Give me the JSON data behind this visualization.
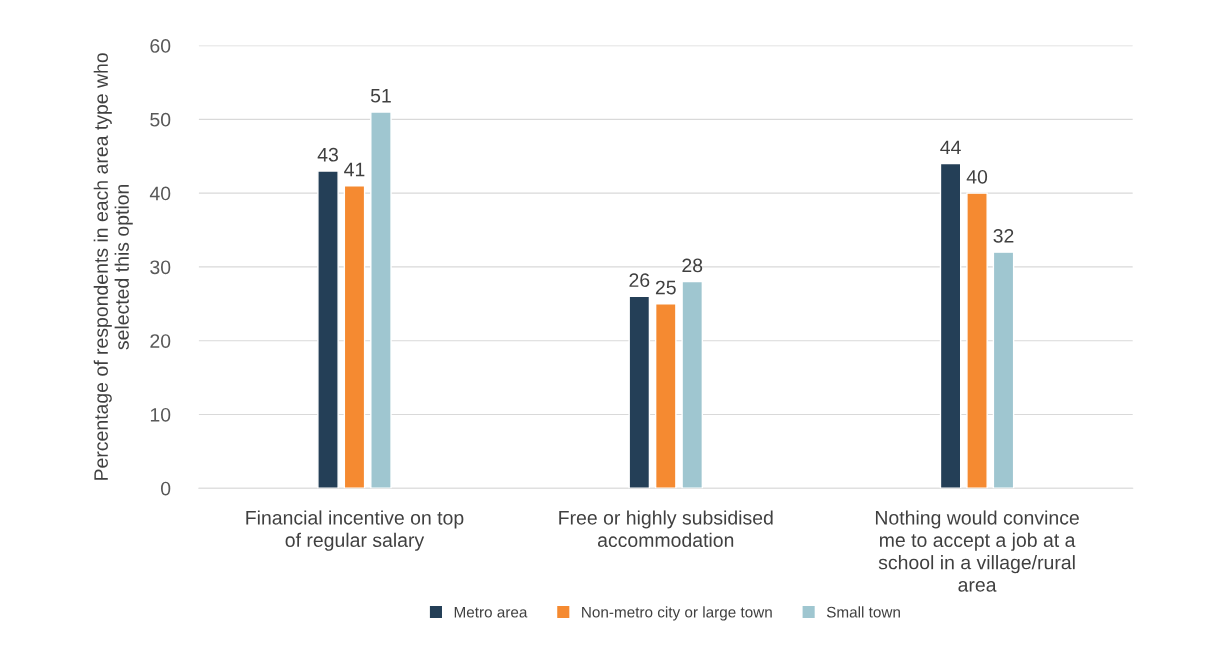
{
  "chart_data": {
    "type": "bar",
    "ylabel": "Percentage of respondents in each area type who selected this option",
    "categories": [
      "Financial incentive on top of regular salary",
      "Free or highly subsidised accommodation",
      "Nothing would convince me to accept a job at a school in a village/rural area"
    ],
    "series": [
      {
        "name": "Metro area",
        "color": "#243f57",
        "values": [
          43,
          26,
          44
        ]
      },
      {
        "name": "Non-metro city or large town",
        "color": "#f58a31",
        "values": [
          41,
          25,
          40
        ]
      },
      {
        "name": "Small town",
        "color": "#9fc6d0",
        "values": [
          51,
          28,
          32
        ]
      }
    ],
    "ylim": [
      0,
      60
    ],
    "yticks": [
      0,
      10,
      20,
      30,
      40,
      50,
      60
    ],
    "grid": "y",
    "legend": "bottom",
    "data_labels": true
  }
}
